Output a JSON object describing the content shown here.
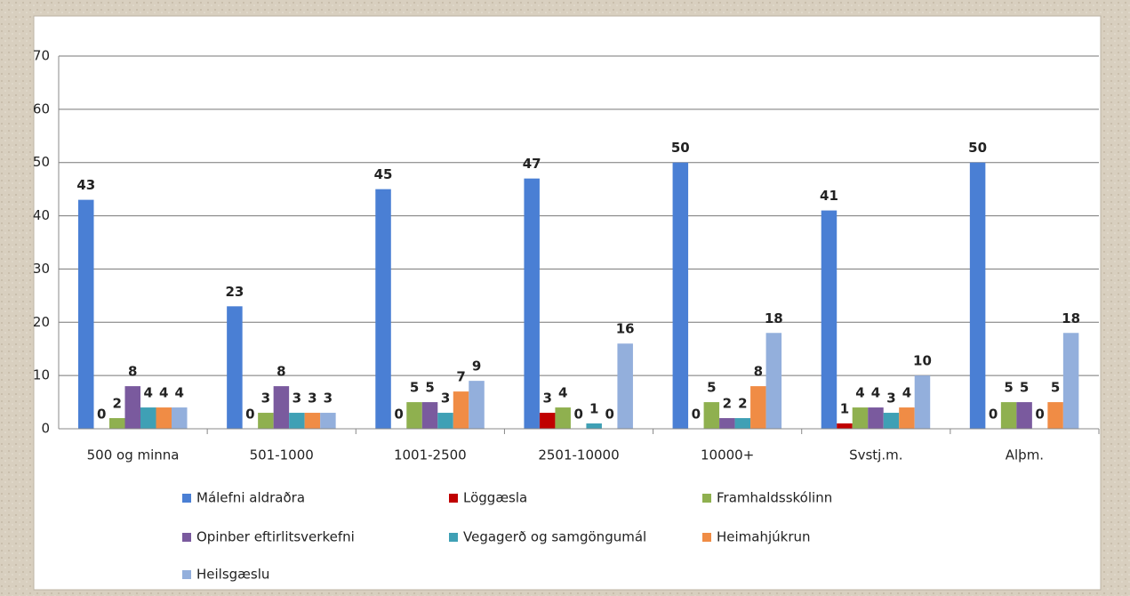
{
  "chart_data": {
    "type": "bar",
    "categories": [
      "500 og minna",
      "501-1000",
      "1001-2500",
      "2501-10000",
      "10000+",
      "Svstj.m.",
      "Alþm."
    ],
    "series": [
      {
        "name": "Málefni aldraðra",
        "color": "#4a7fd4",
        "values": [
          43,
          23,
          45,
          47,
          50,
          41,
          50
        ]
      },
      {
        "name": "Löggæsla",
        "color": "#c00000",
        "values": [
          0,
          0,
          0,
          3,
          0,
          1,
          0
        ]
      },
      {
        "name": "Framhaldsskólinn",
        "color": "#8fb04f",
        "values": [
          2,
          3,
          5,
          4,
          5,
          4,
          5
        ]
      },
      {
        "name": "Opinber eftirlitsverkefni",
        "color": "#7a5a9e",
        "values": [
          8,
          8,
          5,
          0,
          2,
          4,
          5
        ]
      },
      {
        "name": "Vegagerð og samgöngumál",
        "color": "#3fa0b5",
        "values": [
          4,
          3,
          3,
          1,
          2,
          3,
          0
        ]
      },
      {
        "name": "Heimahjúkrun",
        "color": "#f08c45",
        "values": [
          4,
          3,
          7,
          0,
          8,
          4,
          5
        ]
      },
      {
        "name": "Heilsgæslu",
        "color": "#93afdc",
        "values": [
          4,
          3,
          9,
          16,
          18,
          10,
          18
        ]
      }
    ],
    "ylim": [
      0,
      70
    ],
    "yticks": [
      0,
      10,
      20,
      30,
      40,
      50,
      60,
      70
    ],
    "grid": true,
    "legend": "bottom"
  }
}
